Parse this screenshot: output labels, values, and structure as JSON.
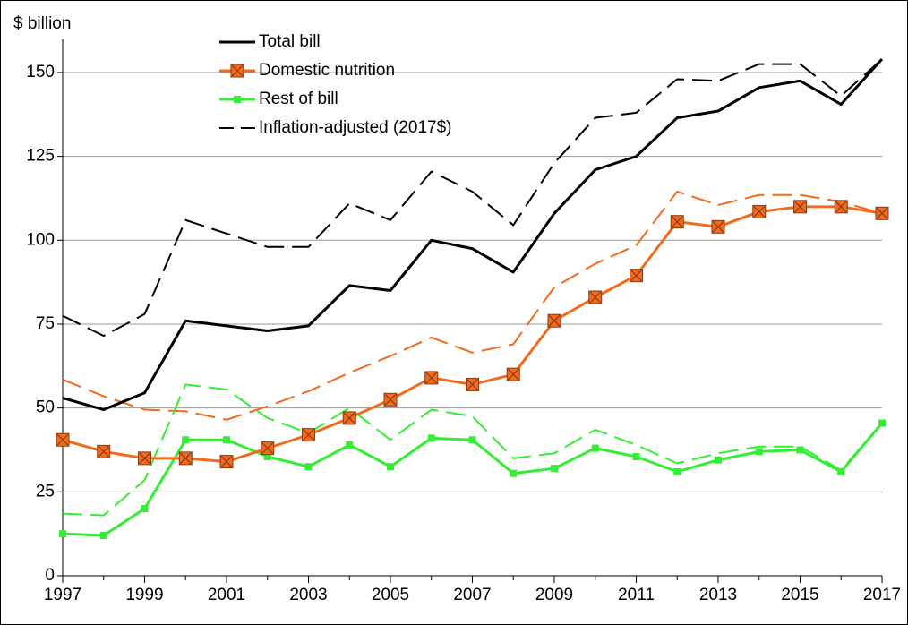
{
  "chart_data": {
    "type": "line",
    "y_label": "$ billion",
    "x": [
      1997,
      1998,
      1999,
      2000,
      2001,
      2002,
      2003,
      2004,
      2005,
      2006,
      2007,
      2008,
      2009,
      2010,
      2011,
      2012,
      2013,
      2014,
      2015,
      2016,
      2017
    ],
    "xlim": [
      1997,
      2017
    ],
    "xticks": [
      1997,
      1999,
      2001,
      2003,
      2005,
      2007,
      2009,
      2011,
      2013,
      2015,
      2017
    ],
    "ylim": [
      0,
      160
    ],
    "yticks": [
      0,
      25,
      50,
      75,
      100,
      125,
      150
    ],
    "grid": true,
    "legend": "top-center",
    "series": [
      {
        "name": "Total bill",
        "color": "#000000",
        "width": 3,
        "values": [
          53,
          49.5,
          54.5,
          76,
          74.5,
          73,
          74.5,
          86.5,
          85,
          100,
          97.5,
          90.5,
          108,
          121,
          125,
          136.5,
          138.5,
          145.5,
          147.5,
          140.5,
          154
        ]
      },
      {
        "name": "Domestic nutrition",
        "color": "#f26b1d",
        "width": 3,
        "marker": "square-x",
        "values": [
          40.5,
          37,
          35,
          35,
          34,
          38,
          42,
          47,
          52.5,
          59,
          57,
          60,
          76,
          83,
          89.5,
          105.5,
          104,
          108.5,
          110,
          110,
          108
        ]
      },
      {
        "name": "Rest of bill",
        "color": "#33ee33",
        "width": 3,
        "marker": "square",
        "values": [
          12.5,
          12,
          20,
          40.5,
          40.5,
          35.5,
          32.5,
          39,
          32.5,
          41,
          40.5,
          30.5,
          32,
          38,
          35.5,
          31,
          34.5,
          37,
          37.5,
          31,
          45.5
        ]
      },
      {
        "name": "Inflation-adjusted (2017$)",
        "color": "#000000",
        "width": 2,
        "dash": true,
        "values": [
          77.5,
          71.5,
          78,
          106,
          102,
          98,
          98,
          111,
          106,
          120.5,
          114.5,
          104.5,
          123,
          136.5,
          138,
          148,
          147.5,
          152.5,
          152.5,
          143,
          154
        ]
      },
      {
        "color": "#f26b1d",
        "width": 2,
        "dash": true,
        "values": [
          58.5,
          53.5,
          49.5,
          49,
          46.5,
          50.5,
          55,
          60.5,
          65.5,
          71,
          66.5,
          69,
          86,
          93,
          98.5,
          114.5,
          110.5,
          113.5,
          113.5,
          111.5,
          108
        ]
      },
      {
        "color": "#33ee33",
        "width": 2,
        "dash": true,
        "values": [
          18.5,
          18,
          28.5,
          57,
          55.5,
          47,
          42.5,
          50,
          40.5,
          49.5,
          47.5,
          35,
          36.5,
          43.5,
          39,
          33.5,
          36.5,
          38.5,
          38.5,
          31.5,
          45.5
        ]
      }
    ]
  }
}
